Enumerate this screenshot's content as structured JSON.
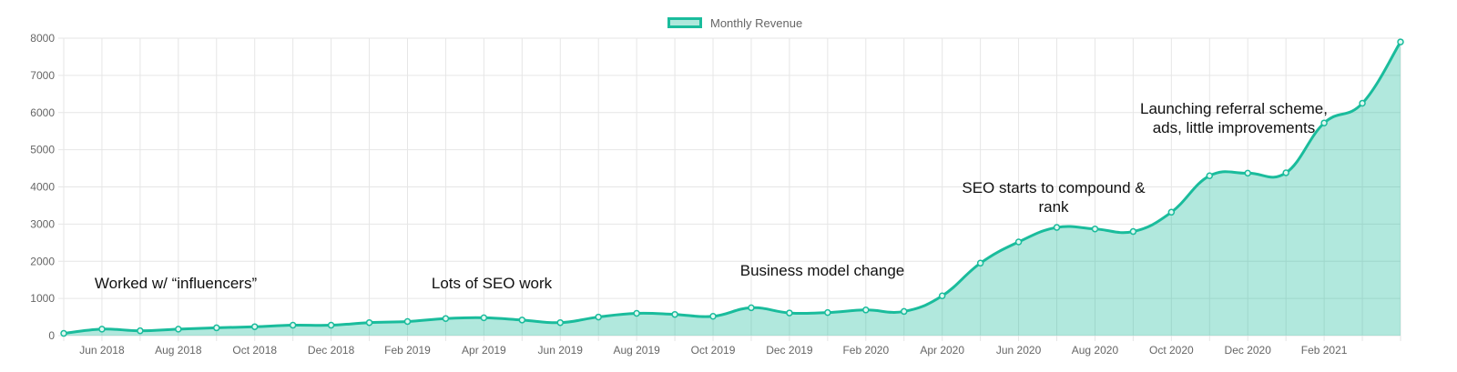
{
  "legend": {
    "label": "Monthly Revenue"
  },
  "colors": {
    "line": "#1abc9c",
    "fill": "rgba(26,188,156,0.34)",
    "grid": "#e6e6e6",
    "tick": "#666666"
  },
  "chart_data": {
    "type": "area",
    "title": "",
    "xlabel": "",
    "ylabel": "",
    "ylim": [
      0,
      8000
    ],
    "yticks": [
      0,
      1000,
      2000,
      3000,
      4000,
      5000,
      6000,
      7000,
      8000
    ],
    "xtick_labels": [
      "Jun 2018",
      "Aug 2018",
      "Oct 2018",
      "Dec 2018",
      "Feb 2019",
      "Apr 2019",
      "Jun 2019",
      "Aug 2019",
      "Oct 2019",
      "Dec 2019",
      "Feb 2020",
      "Apr 2020",
      "Jun 2020",
      "Aug 2020",
      "Oct 2020",
      "Dec 2020",
      "Feb 2021"
    ],
    "x": [
      "May 2018",
      "Jun 2018",
      "Jul 2018",
      "Aug 2018",
      "Sep 2018",
      "Oct 2018",
      "Nov 2018",
      "Dec 2018",
      "Jan 2019",
      "Feb 2019",
      "Mar 2019",
      "Apr 2019",
      "May 2019",
      "Jun 2019",
      "Jul 2019",
      "Aug 2019",
      "Sep 2019",
      "Oct 2019",
      "Nov 2019",
      "Dec 2019",
      "Jan 2020",
      "Feb 2020",
      "Mar 2020",
      "Apr 2020",
      "May 2020",
      "Jun 2020",
      "Jul 2020",
      "Aug 2020",
      "Sep 2020",
      "Oct 2020",
      "Nov 2020",
      "Dec 2020",
      "Jan 2021",
      "Feb 2021",
      "Mar 2021",
      "Apr 2021"
    ],
    "series": [
      {
        "name": "Monthly Revenue",
        "values": [
          60,
          175,
          130,
          175,
          210,
          240,
          280,
          280,
          350,
          380,
          460,
          480,
          420,
          350,
          500,
          600,
          570,
          520,
          750,
          610,
          620,
          690,
          650,
          1070,
          1950,
          2520,
          2910,
          2870,
          2800,
          3320,
          4300,
          4370,
          4380,
          5720,
          6250,
          7900
        ]
      }
    ],
    "annotations": [
      {
        "text": "Worked w/ “influencers”"
      },
      {
        "text": "Lots of SEO work"
      },
      {
        "text": "Business model change"
      },
      {
        "lines": [
          "SEO starts to compound &",
          "rank"
        ]
      },
      {
        "lines": [
          "Launching referral scheme,",
          "ads, little improvements"
        ]
      }
    ],
    "grid": true,
    "legend_position": "top-center"
  }
}
